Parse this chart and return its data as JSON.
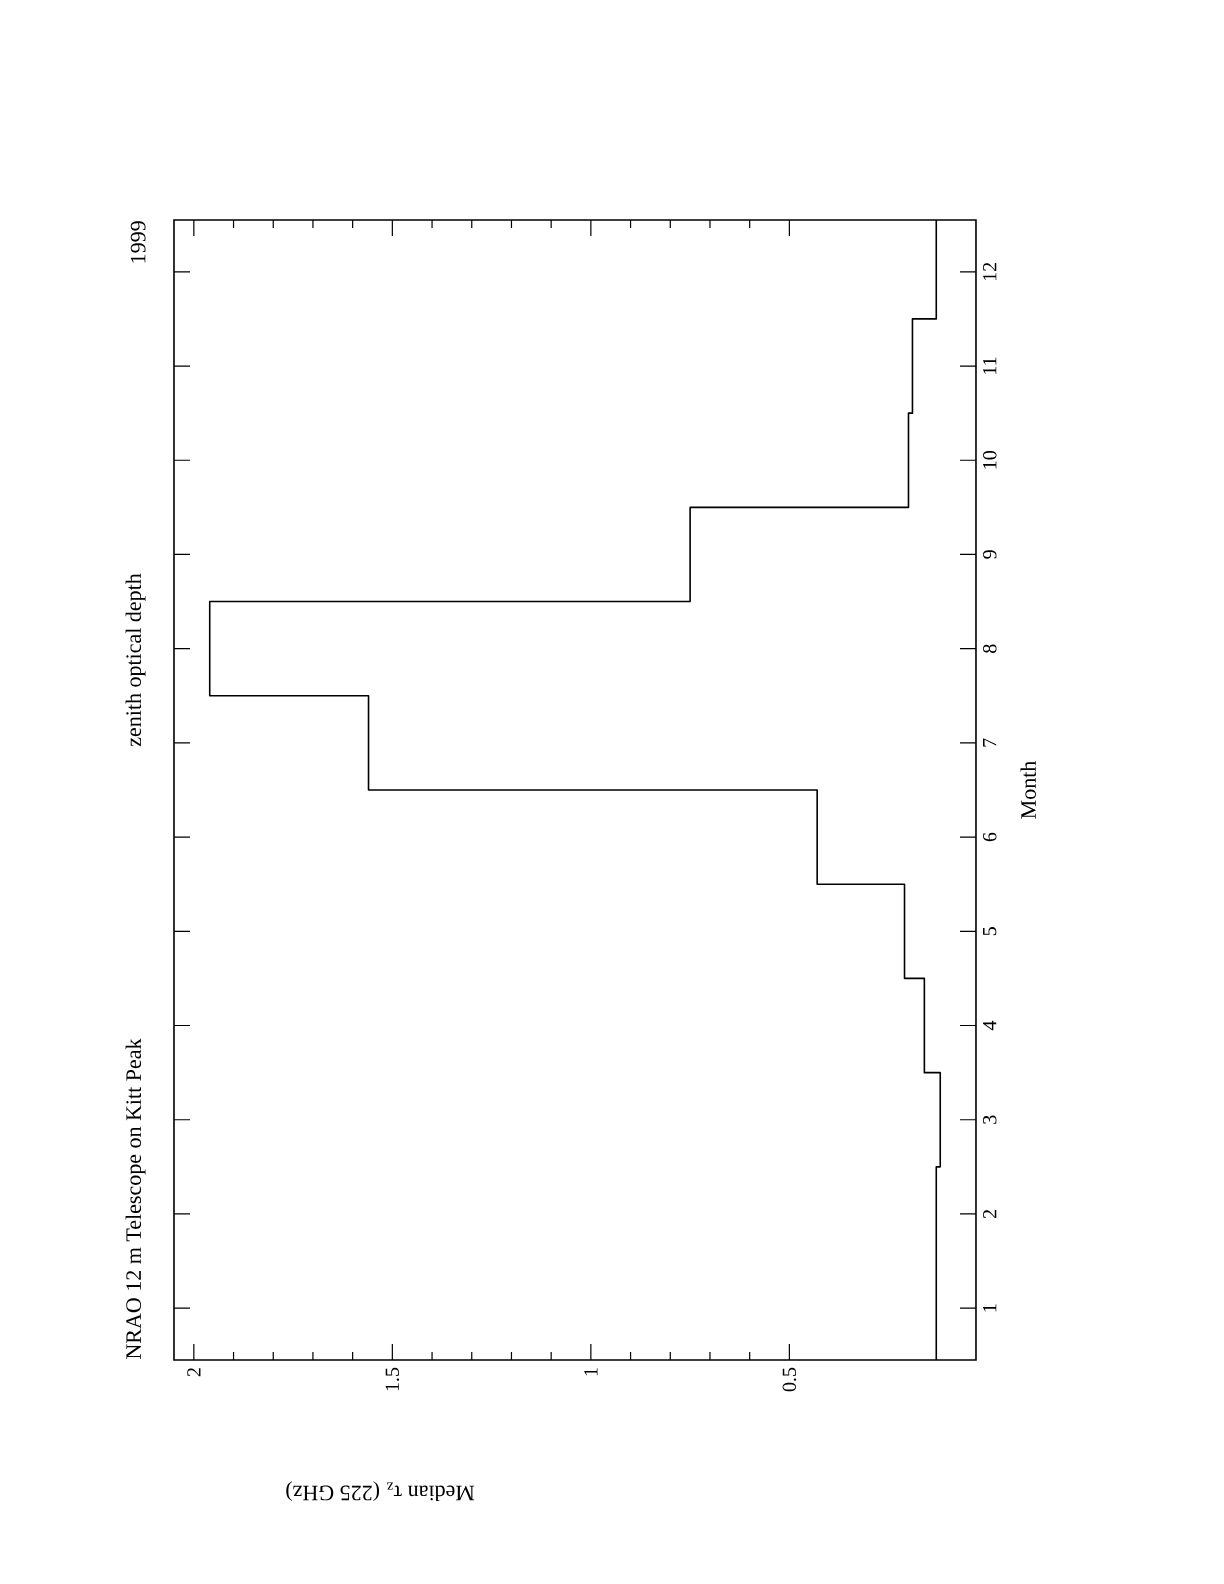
{
  "chart_data": {
    "type": "histogram",
    "orientation": "horizontal",
    "title": "NRAO 12 m Telescope on Kitt Peak",
    "subtitle": "zenith optical depth",
    "annotations": [
      "1999"
    ],
    "xlabel": "Median τ$_{z}$ (225 GHz)",
    "ylabel": "Month",
    "bins": [
      0.45,
      1.5,
      2.5,
      3.5,
      4.5,
      5.5,
      6.5,
      7.5,
      8.5,
      9.5,
      10.5,
      11.5,
      12.55
    ],
    "values": [
      0.13,
      0.13,
      0.12,
      0.16,
      0.21,
      0.43,
      1.56,
      1.96,
      0.75,
      0.2,
      0.19,
      0.13
    ],
    "color": "#000000",
    "xlim": [
      2.05,
      0.03
    ],
    "xticks": [
      0.5,
      1,
      1.5,
      2
    ],
    "ylim": [
      0.45,
      12.55
    ],
    "yticks": [
      1,
      2,
      3,
      4,
      5,
      6,
      7,
      8,
      9,
      10,
      11,
      12
    ]
  }
}
